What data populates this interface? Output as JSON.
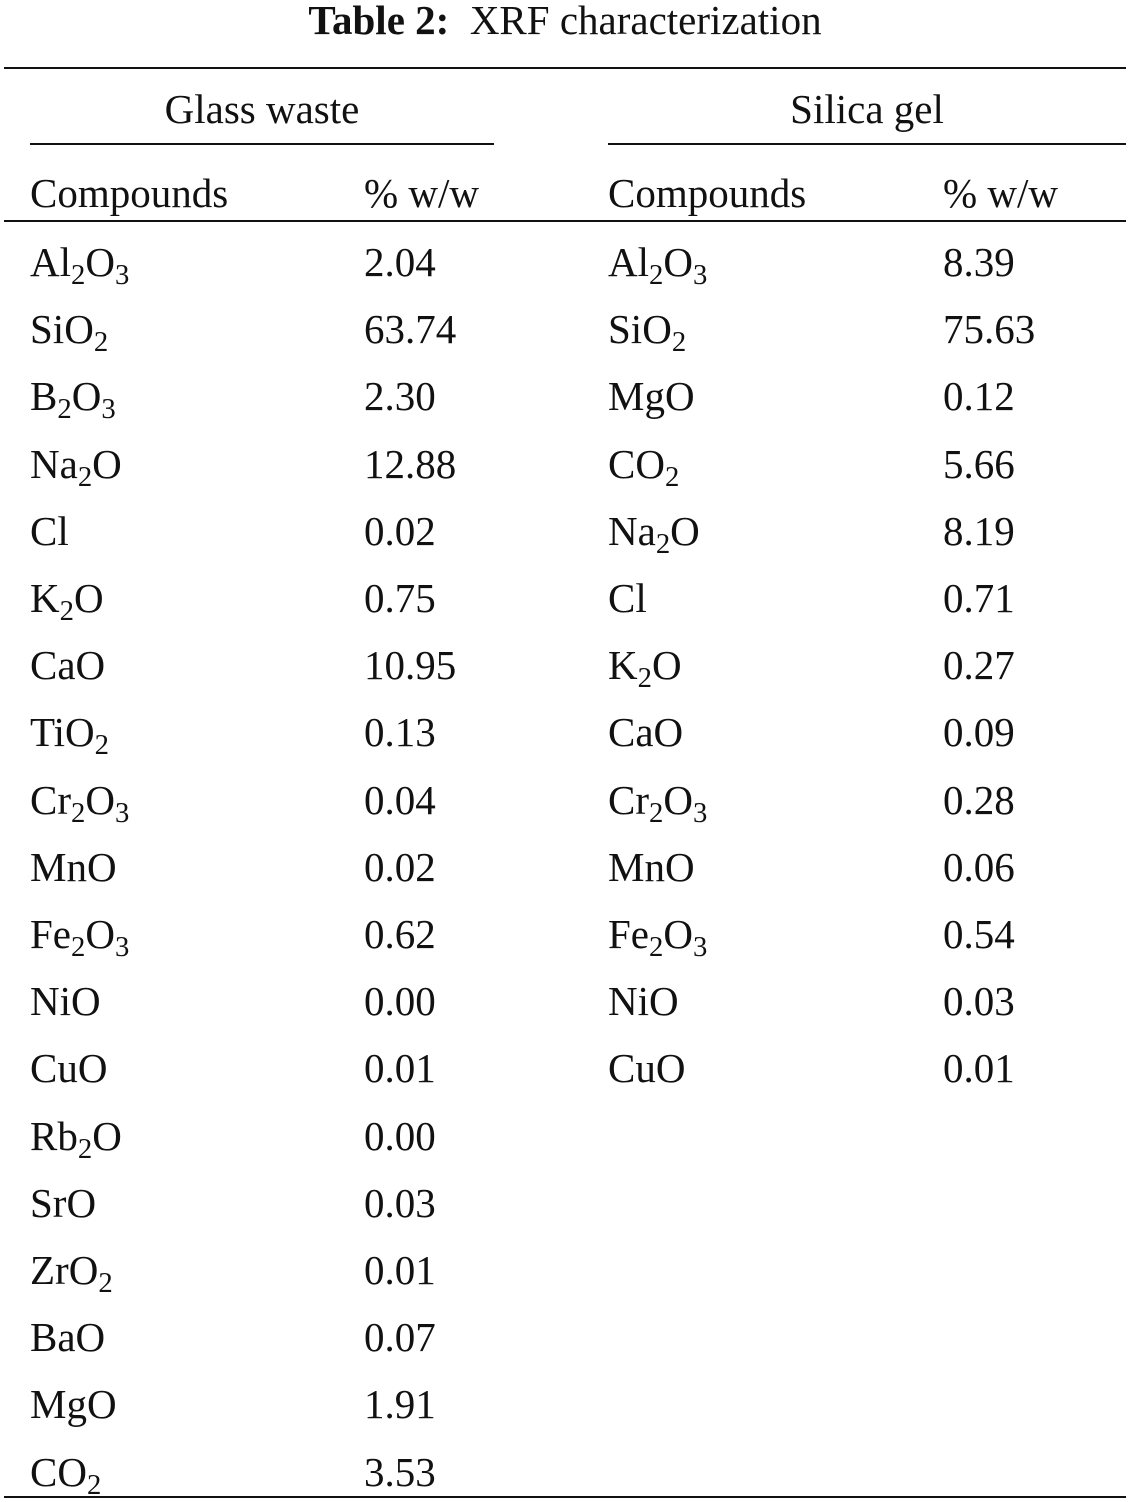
{
  "table": {
    "label": "Table 2:",
    "title": "XRF characterization",
    "groups": [
      {
        "name": "Glass waste",
        "col_compound": "Compounds",
        "col_value": "% w/w",
        "rows": [
          {
            "compound": "Al2O3",
            "value": "2.04"
          },
          {
            "compound": "SiO2",
            "value": "63.74"
          },
          {
            "compound": "B2O3",
            "value": "2.30"
          },
          {
            "compound": "Na2O",
            "value": "12.88"
          },
          {
            "compound": "Cl",
            "value": "0.02"
          },
          {
            "compound": "K2O",
            "value": "0.75"
          },
          {
            "compound": "CaO",
            "value": "10.95"
          },
          {
            "compound": "TiO2",
            "value": "0.13"
          },
          {
            "compound": "Cr2O3",
            "value": "0.04"
          },
          {
            "compound": "MnO",
            "value": "0.02"
          },
          {
            "compound": "Fe2O3",
            "value": "0.62"
          },
          {
            "compound": "NiO",
            "value": "0.00"
          },
          {
            "compound": "CuO",
            "value": "0.01"
          },
          {
            "compound": "Rb2O",
            "value": "0.00"
          },
          {
            "compound": "SrO",
            "value": "0.03"
          },
          {
            "compound": "ZrO2",
            "value": "0.01"
          },
          {
            "compound": "BaO",
            "value": "0.07"
          },
          {
            "compound": "MgO",
            "value": "1.91"
          },
          {
            "compound": "CO2",
            "value": "3.53"
          }
        ]
      },
      {
        "name": "Silica gel",
        "col_compound": "Compounds",
        "col_value": "% w/w",
        "rows": [
          {
            "compound": "Al2O3",
            "value": "8.39"
          },
          {
            "compound": "SiO2",
            "value": "75.63"
          },
          {
            "compound": "MgO",
            "value": "0.12"
          },
          {
            "compound": "CO2",
            "value": "5.66"
          },
          {
            "compound": "Na2O",
            "value": "8.19"
          },
          {
            "compound": "Cl",
            "value": "0.71"
          },
          {
            "compound": "K2O",
            "value": "0.27"
          },
          {
            "compound": "CaO",
            "value": "0.09"
          },
          {
            "compound": "Cr2O3",
            "value": "0.28"
          },
          {
            "compound": "MnO",
            "value": "0.06"
          },
          {
            "compound": "Fe2O3",
            "value": "0.54"
          },
          {
            "compound": "NiO",
            "value": "0.03"
          },
          {
            "compound": "CuO",
            "value": "0.01"
          }
        ]
      }
    ]
  }
}
